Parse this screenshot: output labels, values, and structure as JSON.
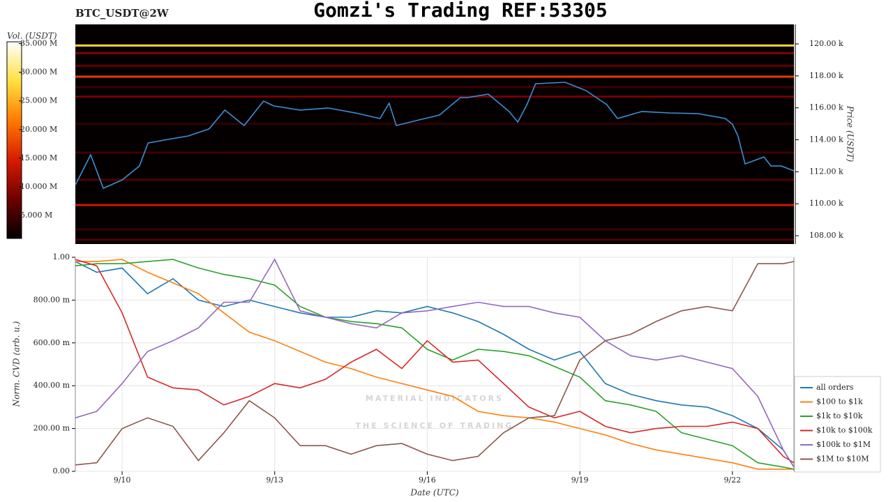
{
  "chart_data": [
    {
      "type": "heatmap",
      "title": "Gomzi's Trading REF:53305",
      "subtitle": "BTC_USDT@2W",
      "ylabel": "Price (USDT)",
      "colorbar_label": "Vol. (USDT)",
      "xlim": [
        9.08,
        23.21
      ],
      "ylim": [
        107480,
        121220
      ],
      "yticks": [
        {
          "value": 108000,
          "label": "108.00 k"
        },
        {
          "value": 110000,
          "label": "110.00 k"
        },
        {
          "value": 112000,
          "label": "112.00 k"
        },
        {
          "value": 114000,
          "label": "114.00 k"
        },
        {
          "value": 116000,
          "label": "116.00 k"
        },
        {
          "value": 118000,
          "label": "118.00 k"
        },
        {
          "value": 120000,
          "label": "120.00 k"
        }
      ],
      "zlim": [
        1,
        35.3
      ],
      "zticks": [
        {
          "value": 5,
          "label": "5.000 M"
        },
        {
          "value": 10,
          "label": "10.000 M"
        },
        {
          "value": 15,
          "label": "15.000 M"
        },
        {
          "value": 20,
          "label": "20.000 M"
        },
        {
          "value": 25,
          "label": "25.000 M"
        },
        {
          "value": 30,
          "label": "30.000 M"
        },
        {
          "value": 35,
          "label": "35.000 M"
        }
      ],
      "colormap": [
        "#000000",
        "#6e0000",
        "#d81b00",
        "#ff7a00",
        "#ffe040",
        "#ffffff"
      ],
      "levels": {
        "price": [
          119900,
          119420,
          118640,
          117950,
          117300,
          116700,
          115000,
          113200,
          111500,
          109920,
          108400,
          107750
        ],
        "volume": [
          28,
          9,
          7,
          17,
          5,
          8,
          4,
          5,
          6,
          14,
          5,
          6
        ]
      },
      "color": "#3a8fd8",
      "x": [
        9.08,
        9.38,
        9.63,
        10.0,
        10.34,
        10.51,
        10.89,
        11.3,
        11.71,
        12.02,
        12.4,
        12.78,
        12.98,
        13.5,
        14.05,
        14.59,
        15.07,
        15.25,
        15.39,
        15.83,
        16.24,
        16.65,
        16.79,
        17.2,
        17.61,
        17.78,
        17.96,
        18.13,
        18.71,
        19.12,
        19.53,
        19.74,
        20.22,
        20.77,
        21.32,
        21.86,
        22.0,
        22.11,
        22.25,
        22.62,
        22.76,
        22.96,
        23.21
      ],
      "values": [
        111180,
        113060,
        110970,
        111490,
        112360,
        113800,
        114020,
        114240,
        114680,
        115860,
        114890,
        116420,
        116120,
        115860,
        115990,
        115680,
        115330,
        116290,
        114890,
        115240,
        115550,
        116640,
        116640,
        116860,
        115770,
        115110,
        116200,
        117510,
        117600,
        117080,
        116200,
        115330,
        115770,
        115680,
        115640,
        115330,
        114980,
        114240,
        112490,
        112930,
        112360,
        112360,
        112060
      ]
    },
    {
      "type": "line",
      "xlabel": "Date (UTC)",
      "ylabel": "Norm. CVD (arb. u.)",
      "watermark": [
        "MATERIAL INDICATORS",
        "THE SCIENCE OF TRADING"
      ],
      "xlim": [
        9.08,
        23.21
      ],
      "ylim": [
        0,
        1
      ],
      "xticks": [
        {
          "value": 10,
          "label": "9/10"
        },
        {
          "value": 13,
          "label": "9/13"
        },
        {
          "value": 16,
          "label": "9/16"
        },
        {
          "value": 19,
          "label": "9/19"
        },
        {
          "value": 22,
          "label": "9/22"
        }
      ],
      "yticks": [
        {
          "value": 0,
          "label": "0.00"
        },
        {
          "value": 0.2,
          "label": "200.00 m"
        },
        {
          "value": 0.4,
          "label": "400.00 m"
        },
        {
          "value": 0.6,
          "label": "600.00 m"
        },
        {
          "value": 0.8,
          "label": "800.00 m"
        },
        {
          "value": 1,
          "label": "1.00"
        }
      ],
      "grid": true,
      "legend": "right",
      "x": [
        9.08,
        9.5,
        10,
        10.5,
        11,
        11.5,
        12,
        12.5,
        13,
        13.5,
        14,
        14.5,
        15,
        15.5,
        16,
        16.5,
        17,
        17.5,
        18,
        18.5,
        19,
        19.5,
        20,
        20.5,
        21,
        21.5,
        22,
        22.5,
        23,
        23.21
      ],
      "series": [
        {
          "name": "all orders",
          "color": "#1f77b4",
          "values": [
            0.98,
            0.93,
            0.95,
            0.83,
            0.9,
            0.8,
            0.77,
            0.8,
            0.77,
            0.74,
            0.72,
            0.72,
            0.75,
            0.74,
            0.77,
            0.74,
            0.7,
            0.64,
            0.57,
            0.52,
            0.56,
            0.41,
            0.36,
            0.33,
            0.31,
            0.3,
            0.26,
            0.2,
            0.1,
            0.02
          ]
        },
        {
          "name": "$100 to $1k",
          "color": "#ff7f0e",
          "values": [
            0.98,
            0.98,
            0.99,
            0.93,
            0.88,
            0.83,
            0.74,
            0.65,
            0.61,
            0.56,
            0.51,
            0.48,
            0.44,
            0.41,
            0.38,
            0.35,
            0.28,
            0.26,
            0.25,
            0.23,
            0.2,
            0.17,
            0.13,
            0.1,
            0.08,
            0.06,
            0.04,
            0.01,
            0.01,
            0.01
          ]
        },
        {
          "name": "$1k to $10k",
          "color": "#2ca02c",
          "values": [
            0.96,
            0.97,
            0.97,
            0.98,
            0.99,
            0.95,
            0.92,
            0.9,
            0.87,
            0.77,
            0.72,
            0.7,
            0.69,
            0.67,
            0.57,
            0.52,
            0.57,
            0.56,
            0.54,
            0.49,
            0.44,
            0.33,
            0.31,
            0.28,
            0.18,
            0.15,
            0.12,
            0.04,
            0.02,
            0.01
          ]
        },
        {
          "name": "$10k to $100k",
          "color": "#d62728",
          "values": [
            0.99,
            0.96,
            0.74,
            0.44,
            0.39,
            0.38,
            0.31,
            0.35,
            0.41,
            0.39,
            0.43,
            0.51,
            0.57,
            0.48,
            0.61,
            0.51,
            0.52,
            0.41,
            0.3,
            0.25,
            0.28,
            0.21,
            0.18,
            0.2,
            0.21,
            0.21,
            0.23,
            0.2,
            0.07,
            0.04
          ]
        },
        {
          "name": "$100k to $1M",
          "color": "#9467bd",
          "values": [
            0.25,
            0.28,
            0.41,
            0.56,
            0.61,
            0.67,
            0.79,
            0.79,
            0.99,
            0.75,
            0.72,
            0.69,
            0.67,
            0.74,
            0.75,
            0.77,
            0.79,
            0.77,
            0.77,
            0.74,
            0.72,
            0.61,
            0.54,
            0.52,
            0.54,
            0.51,
            0.48,
            0.35,
            0.1,
            0.02
          ]
        },
        {
          "name": "$1M to $10M",
          "color": "#8c564b",
          "values": [
            0.03,
            0.04,
            0.2,
            0.25,
            0.21,
            0.05,
            0.18,
            0.33,
            0.25,
            0.12,
            0.12,
            0.08,
            0.12,
            0.13,
            0.08,
            0.05,
            0.07,
            0.18,
            0.25,
            0.26,
            0.52,
            0.61,
            0.64,
            0.7,
            0.75,
            0.77,
            0.75,
            0.97,
            0.97,
            0.98
          ]
        }
      ]
    }
  ]
}
